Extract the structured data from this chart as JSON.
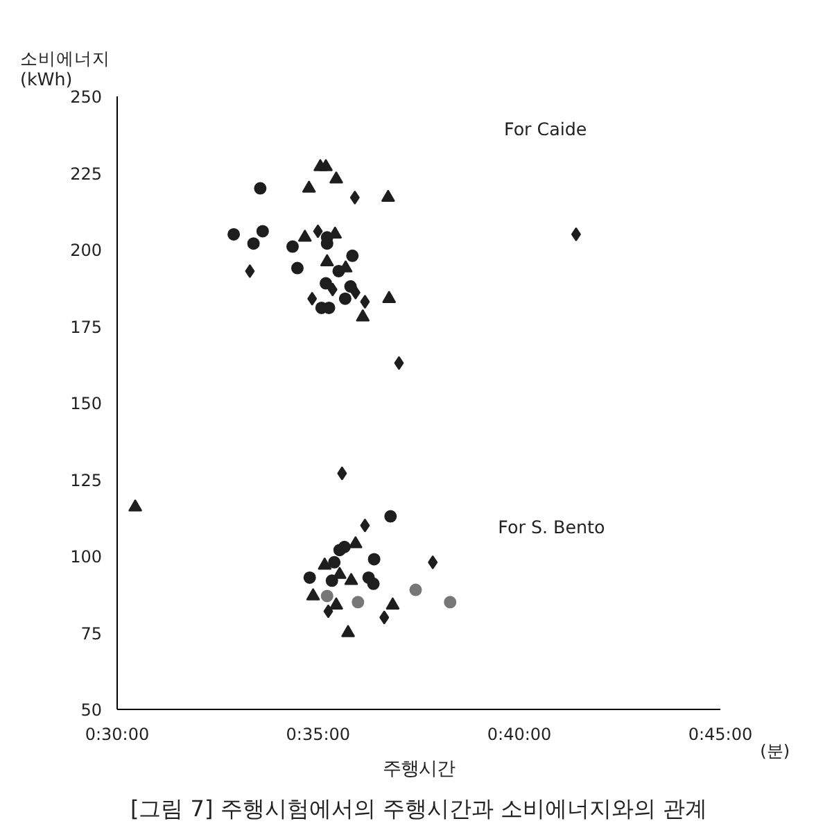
{
  "chart_data": {
    "type": "scatter",
    "xlabel": "주행시간",
    "ylabel": "소비에너지 (kWh)",
    "xlim": [
      0.5,
      0.75
    ],
    "xticks": [
      {
        "value": 0.5,
        "label": "0:30:00"
      },
      {
        "value": 0.5833,
        "label": "0:35:00"
      },
      {
        "value": 0.6667,
        "label": "0:40:00"
      },
      {
        "value": 0.75,
        "label": "0:45:00"
      }
    ],
    "ylim": [
      50,
      250
    ],
    "yticks": [
      50,
      75,
      100,
      125,
      150,
      175,
      200,
      225,
      250
    ],
    "series": [
      {
        "marker": "triangle",
        "color": "#1e1e1e",
        "x": [
          0.5865,
          0.5842,
          0.5795,
          0.5908,
          0.6123,
          0.5778,
          0.5903,
          0.587,
          0.5947,
          0.6127,
          0.6018,
          0.5075,
          0.5988,
          0.586,
          0.5922,
          0.597,
          0.5812,
          0.5908,
          0.6142,
          0.5957
        ],
        "values": [
          227,
          227,
          220,
          223,
          217,
          204,
          205,
          196,
          194,
          184,
          178,
          116,
          104,
          97,
          94,
          92,
          87,
          84,
          84,
          75
        ]
      },
      {
        "marker": "circle",
        "color": "#1e1e1e",
        "x": [
          0.5593,
          0.5483,
          0.5603,
          0.5565,
          0.5727,
          0.5747,
          0.5975,
          0.5918,
          0.5967,
          0.5945,
          0.5847,
          0.5878,
          0.587,
          0.587,
          0.5865,
          0.6133,
          0.5922,
          0.5942,
          0.59,
          0.6065,
          0.5798,
          0.589,
          0.6042,
          0.6062
        ],
        "values": [
          220,
          205,
          206,
          202,
          201,
          194,
          198,
          193,
          188,
          184,
          181,
          181,
          204,
          202,
          189,
          113,
          102,
          103,
          98,
          99,
          93,
          92,
          93,
          91
        ]
      },
      {
        "marker": "circle",
        "color": "#777777",
        "x": [
          0.638,
          0.6237,
          0.5998,
          0.587
        ],
        "values": [
          85,
          89,
          85,
          87
        ]
      },
      {
        "marker": "diamond",
        "color": "#1e1e1e",
        "x": [
          0.5985,
          0.555,
          0.5832,
          0.5808,
          0.5893,
          0.6027,
          0.5988,
          0.6902,
          0.6168,
          0.5932,
          0.6027,
          0.6308,
          0.5875,
          0.6107
        ],
        "values": [
          217,
          193,
          206,
          184,
          187,
          183,
          186,
          205,
          163,
          127,
          110,
          98,
          82,
          80
        ]
      }
    ],
    "annotations": [
      "For Caide",
      "For S. Bento",
      "(분)",
      "[그림 7] 주행시험에서의 주행시간과 소비에너지와의 관계"
    ]
  }
}
